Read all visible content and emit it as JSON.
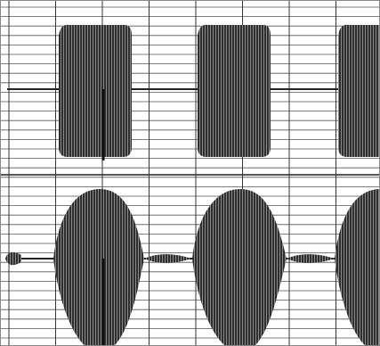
{
  "chart_data": {
    "type": "waveform",
    "grid": true
  }
}
